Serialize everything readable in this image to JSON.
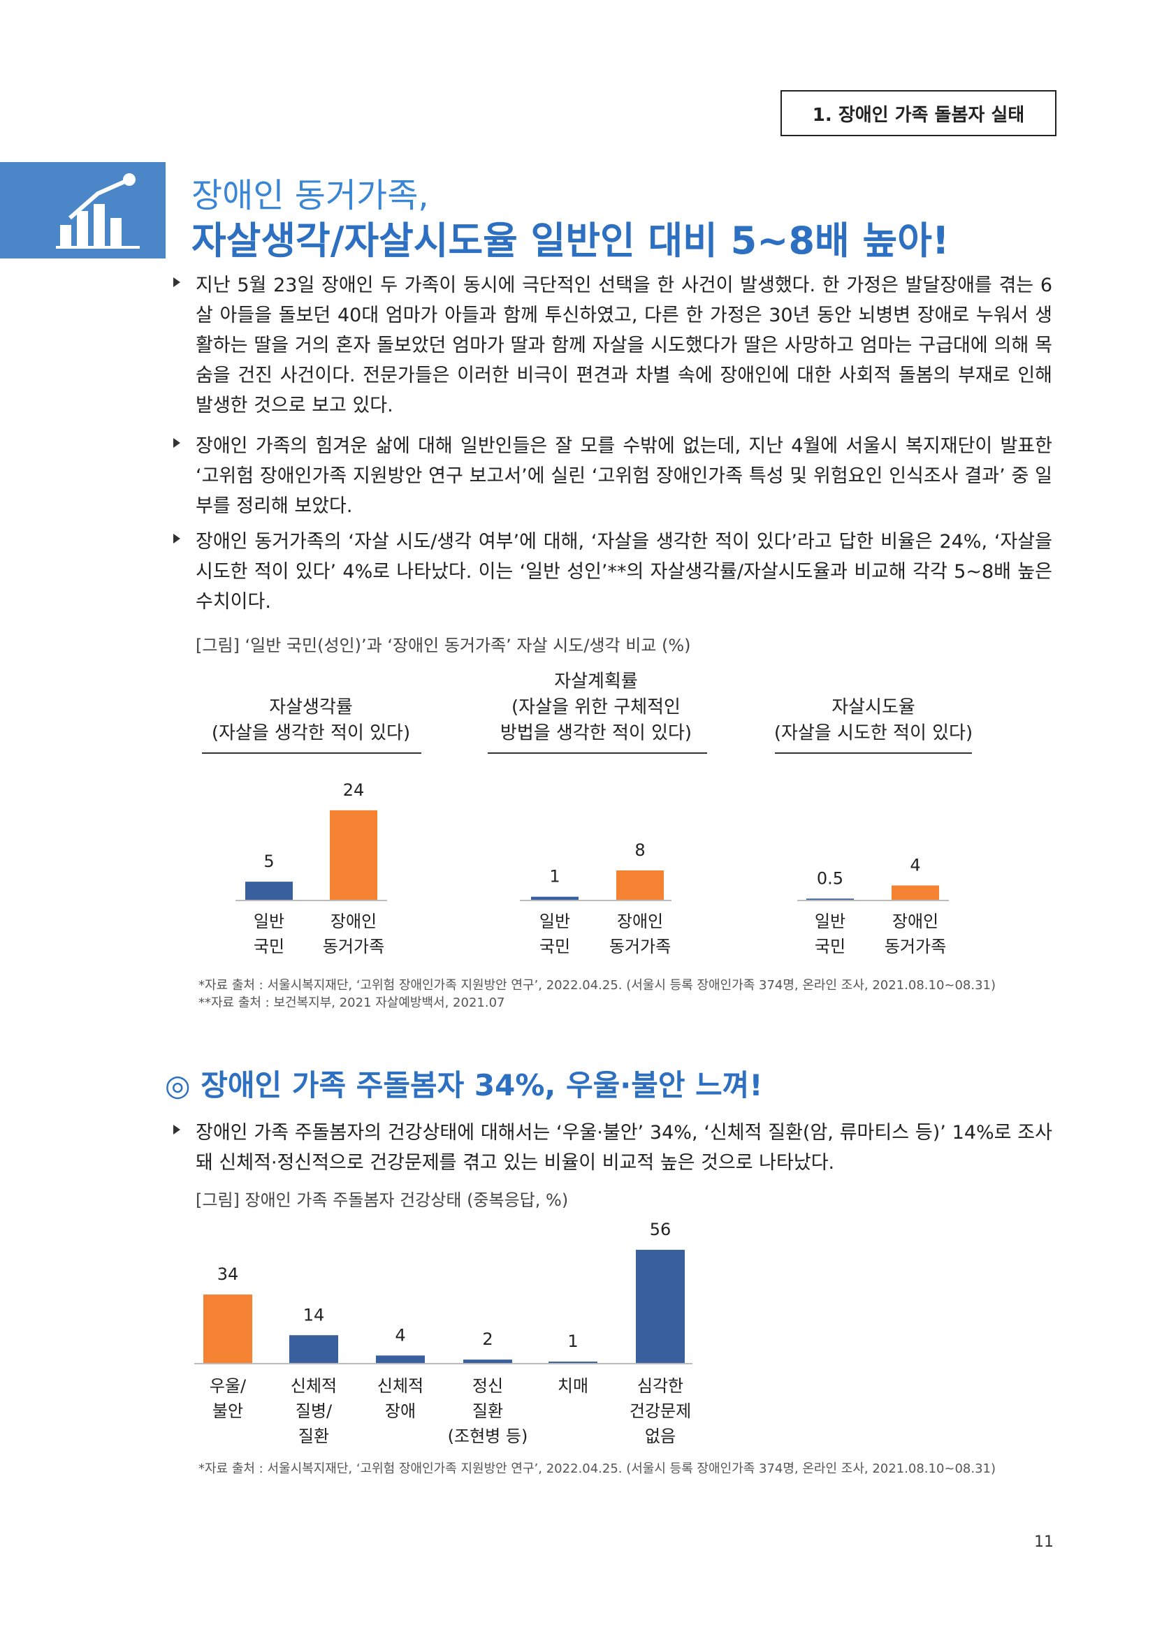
{
  "header": {
    "section": "1. 장애인 가족 돌봄자 실태"
  },
  "title": {
    "line1": "장애인 동거가족,",
    "line2": "자살생각/자살시도율 일반인 대비 5~8배 높아!"
  },
  "bullets": [
    "지난 5월 23일 장애인 두 가족이 동시에 극단적인 선택을 한 사건이 발생했다. 한 가정은 발달장애를 겪는 6살 아들을 돌보던 40대 엄마가 아들과 함께 투신하였고, 다른 한 가정은 30년 동안 뇌병변 장애로 누워서 생활하는 딸을 거의 혼자 돌보았던 엄마가 딸과 함께 자살을 시도했다가 딸은 사망하고 엄마는 구급대에 의해 목숨을 건진 사건이다. 전문가들은 이러한 비극이 편견과 차별 속에 장애인에 대한 사회적 돌봄의 부재로 인해 발생한 것으로 보고 있다.",
    "장애인 가족의 힘겨운 삶에 대해 일반인들은 잘 모를 수밖에 없는데, 지난 4월에 서울시 복지재단이 발표한 ‘고위험 장애인가족 지원방안 연구 보고서’에 실린 ‘고위험 장애인가족 특성 및 위험요인 인식조사 결과’ 중 일부를 정리해 보았다.",
    "장애인 동거가족의 ‘자살 시도/생각 여부’에 대해, ‘자살을 생각한 적이 있다’라고 답한 비율은 24%, ‘자살을 시도한 적이 있다’ 4%로 나타났다. 이는 ‘일반 성인’**의 자살생각률/자살시도율과 비교해 각각 5~8배 높은 수치이다."
  ],
  "figure1": {
    "caption": "[그림] ‘일반 국민(성인)’과 ‘장애인 동거가족’ 자살 시도/생각 비교 (%)",
    "sources": [
      "*자료 출처 : 서울시복지재단, ‘고위험 장애인가족 지원방안 연구’, 2022.04.25. (서울시 등록 장애인가족 374명, 온라인 조사, 2021.08.10~08.31)",
      "**자료 출처 : 보건복지부, 2021 자살예방백서, 2021.07"
    ]
  },
  "section2": {
    "heading": "◎ 장애인 가족 주돌봄자 34%, 우울·불안 느껴!",
    "bullets": [
      "장애인 가족 주돌봄자의 건강상태에 대해서는 ‘우울·불안’ 34%, ‘신체적 질환(암, 류마티스 등)’ 14%로 조사돼 신체적·정신적으로 건강문제를 겪고 있는 비율이 비교적 높은 것으로 나타났다."
    ],
    "caption": "[그림] 장애인 가족 주돌봄자 건강상태 (중복응답, %)",
    "source": "*자료 출처 : 서울시복지재단, ‘고위험 장애인가족 지원방안 연구’, 2022.04.25. (서울시 등록 장애인가족 374명, 온라인 조사, 2021.08.10~08.31)"
  },
  "page_number": "11",
  "chart_data": [
    {
      "type": "bar",
      "title": [
        "자살생각률",
        "(자살을 생각한 적이 있다)"
      ],
      "categories": [
        [
          "일반",
          "국민"
        ],
        [
          "장애인",
          "동거가족"
        ]
      ],
      "values": [
        5,
        24
      ],
      "colors": [
        "#3a5f9e",
        "#f58233"
      ]
    },
    {
      "type": "bar",
      "title": [
        "자살계획률",
        "(자살을 위한 구체적인",
        "방법을 생각한 적이 있다)"
      ],
      "categories": [
        [
          "일반",
          "국민"
        ],
        [
          "장애인",
          "동거가족"
        ]
      ],
      "values": [
        1,
        8
      ],
      "colors": [
        "#3a5f9e",
        "#f58233"
      ]
    },
    {
      "type": "bar",
      "title": [
        "자살시도율",
        "(자살을 시도한 적이 있다)"
      ],
      "categories": [
        [
          "일반",
          "국민"
        ],
        [
          "장애인",
          "동거가족"
        ]
      ],
      "values": [
        0.5,
        4
      ],
      "colors": [
        "#3a5f9e",
        "#f58233"
      ]
    },
    {
      "type": "bar",
      "categories": [
        [
          "우울/",
          "불안"
        ],
        [
          "신체적",
          "질병/",
          "질환"
        ],
        [
          "신체적",
          "장애"
        ],
        [
          "정신",
          "질환",
          "(조현병 등)"
        ],
        [
          "치매"
        ],
        [
          "심각한",
          "건강문제",
          "없음"
        ]
      ],
      "values": [
        34,
        14,
        4,
        2,
        1,
        56
      ],
      "colors": [
        "#f58233",
        "#3a5f9e",
        "#3a5f9e",
        "#3a5f9e",
        "#3a5f9e",
        "#3a5f9e"
      ]
    }
  ]
}
